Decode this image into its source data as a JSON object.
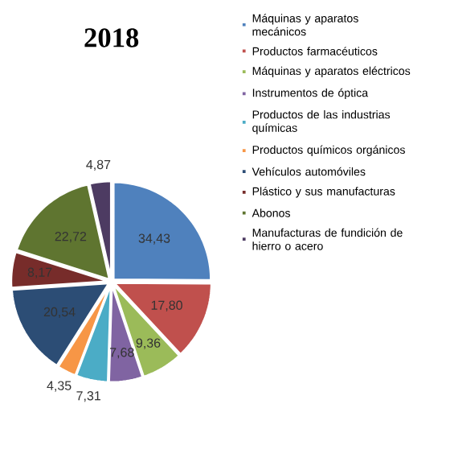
{
  "chart_data": {
    "type": "pie",
    "title": "2018",
    "legend": "right",
    "categories": [
      "Máquinas y aparatos mecánicos",
      "Productos farmacéuticos",
      "Máquinas y aparatos eléctricos",
      "Instrumentos de óptica",
      "Productos de las industrias químicas",
      "Productos químicos orgánicos",
      "Vehículos automóviles",
      "Plástico y sus manufacturas",
      "Abonos",
      "Manufacturas de fundición de hierro o acero"
    ],
    "values": [
      34.43,
      17.8,
      9.36,
      7.68,
      7.31,
      4.35,
      20.54,
      8.17,
      22.72,
      4.87
    ],
    "value_labels": [
      "34,43",
      "17,80",
      "9,36",
      "7,68",
      "7,31",
      "4,35",
      "20,54",
      "8,17",
      "22,72",
      "4,87"
    ],
    "colors": [
      "#4f81bd",
      "#c0504d",
      "#9bbb59",
      "#8064a2",
      "#4bacc6",
      "#f79646",
      "#2c4d75",
      "#772c2a",
      "#5f7530",
      "#4d3b62"
    ]
  }
}
